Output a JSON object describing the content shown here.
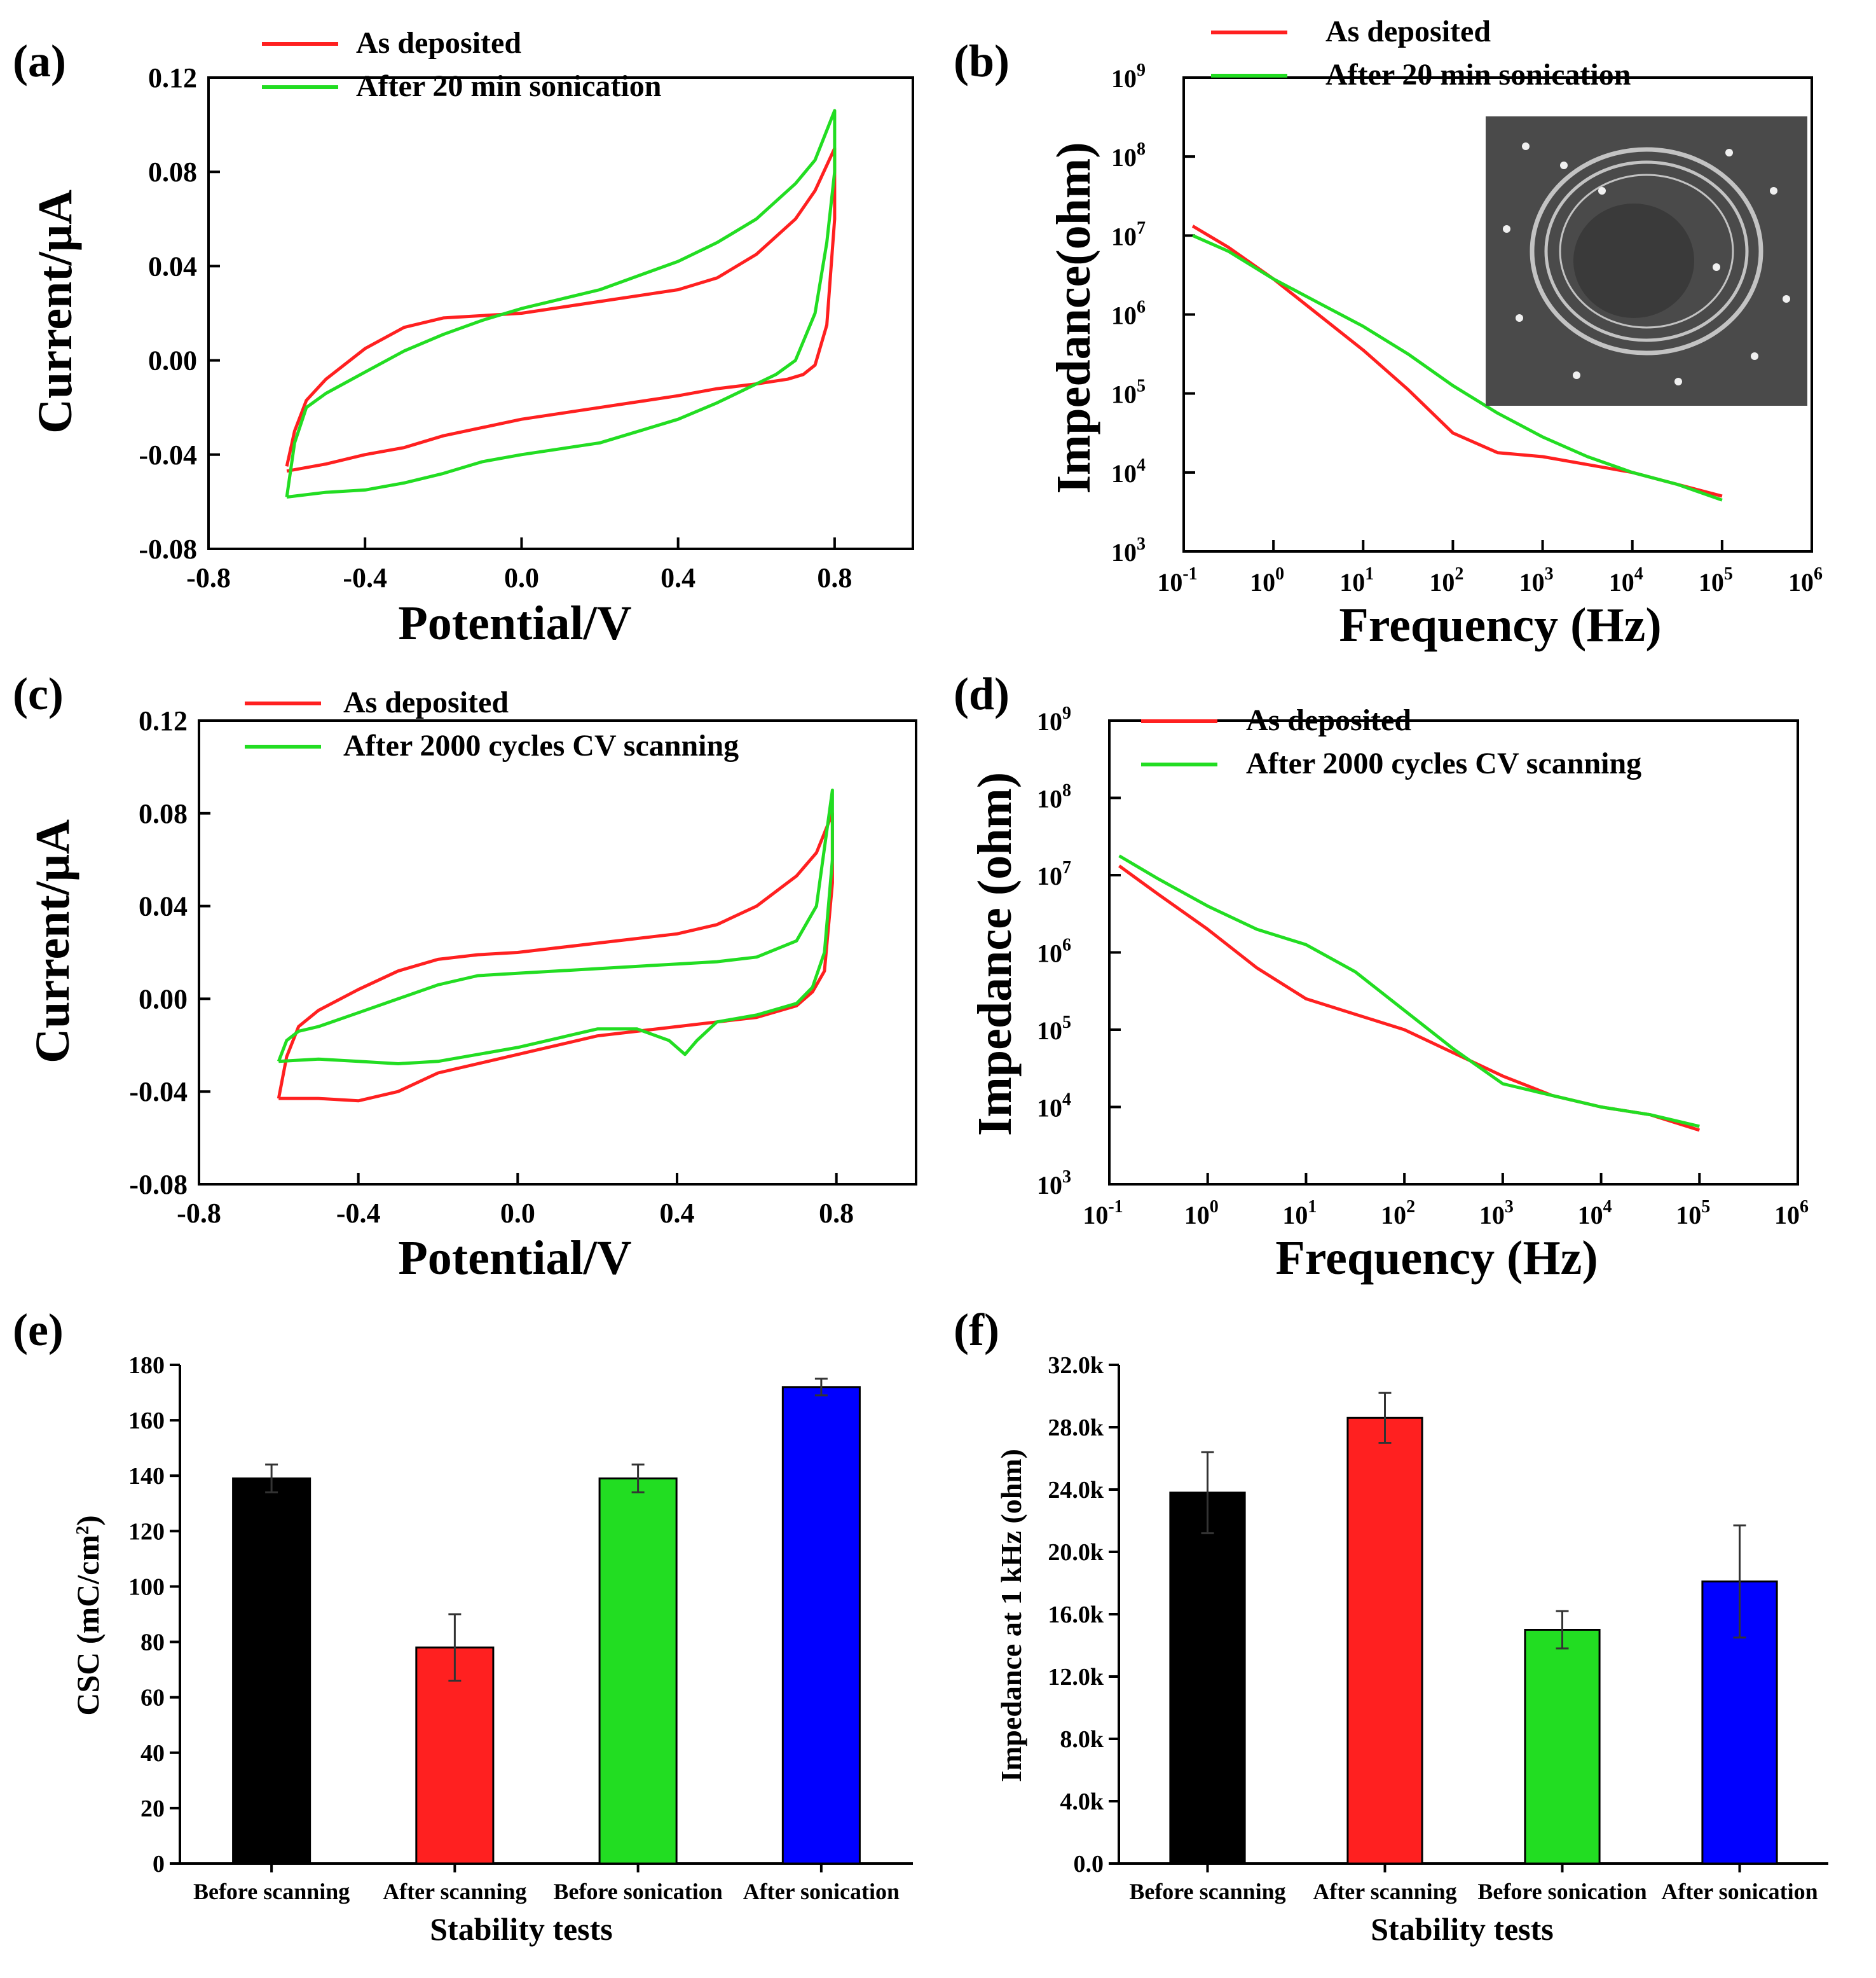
{
  "colors": {
    "red": "#ff2020",
    "green": "#22dd22",
    "black": "#000000",
    "blue": "#0000ff"
  },
  "chart_data": [
    {
      "panel": "(a)",
      "type": "line",
      "xlabel": "Potential/V",
      "ylabel": "Current/μA",
      "xlim": [
        -0.8,
        1.0
      ],
      "ylim": [
        -0.08,
        0.12
      ],
      "xticks": [
        "-0.8",
        "-0.4",
        "0.0",
        "0.4",
        "0.8"
      ],
      "yticks": [
        "-0.08",
        "-0.04",
        "0.00",
        "0.04",
        "0.08",
        "0.12"
      ],
      "legend": [
        "As deposited",
        "After 20 min sonication"
      ],
      "series": [
        {
          "name": "As deposited",
          "color": "red",
          "x": [
            -0.6,
            -0.58,
            -0.55,
            -0.5,
            -0.4,
            -0.3,
            -0.2,
            -0.1,
            0.0,
            0.2,
            0.4,
            0.5,
            0.6,
            0.7,
            0.75,
            0.8,
            0.8,
            0.78,
            0.75,
            0.72,
            0.68,
            0.6,
            0.5,
            0.4,
            0.2,
            0.0,
            -0.2,
            -0.3,
            -0.4,
            -0.5,
            -0.6
          ],
          "y": [
            -0.045,
            -0.03,
            -0.017,
            -0.008,
            0.005,
            0.014,
            0.018,
            0.019,
            0.02,
            0.025,
            0.03,
            0.035,
            0.045,
            0.06,
            0.072,
            0.09,
            0.06,
            0.015,
            -0.002,
            -0.006,
            -0.008,
            -0.01,
            -0.012,
            -0.015,
            -0.02,
            -0.025,
            -0.032,
            -0.037,
            -0.04,
            -0.044,
            -0.047
          ]
        },
        {
          "name": "After 20 min sonication",
          "color": "green",
          "x": [
            -0.6,
            -0.58,
            -0.55,
            -0.5,
            -0.4,
            -0.3,
            -0.2,
            -0.1,
            0.0,
            0.1,
            0.2,
            0.4,
            0.5,
            0.6,
            0.7,
            0.75,
            0.8,
            0.8,
            0.78,
            0.75,
            0.7,
            0.65,
            0.6,
            0.5,
            0.4,
            0.3,
            0.2,
            0.0,
            -0.1,
            -0.2,
            -0.3,
            -0.4,
            -0.5,
            -0.6
          ],
          "y": [
            -0.058,
            -0.035,
            -0.02,
            -0.014,
            -0.005,
            0.004,
            0.011,
            0.017,
            0.022,
            0.026,
            0.03,
            0.042,
            0.05,
            0.06,
            0.075,
            0.085,
            0.106,
            0.08,
            0.05,
            0.02,
            0.0,
            -0.006,
            -0.01,
            -0.018,
            -0.025,
            -0.03,
            -0.035,
            -0.04,
            -0.043,
            -0.048,
            -0.052,
            -0.055,
            -0.056,
            -0.058
          ]
        }
      ]
    },
    {
      "panel": "(b)",
      "type": "line",
      "xscale": "log",
      "yscale": "log",
      "xlabel": "Frequency (Hz)",
      "ylabel": "Impedance(ohm)",
      "xlim_exp": [
        -1,
        6
      ],
      "ylim_exp": [
        3,
        9
      ],
      "xtick_exps": [
        "-1",
        "0",
        "1",
        "2",
        "3",
        "4",
        "5",
        "6"
      ],
      "ytick_exps": [
        "3",
        "4",
        "5",
        "6",
        "7",
        "8",
        "9"
      ],
      "tick_base": "10",
      "legend": [
        "As deposited",
        "After 20 min sonication"
      ],
      "inset": "SEM micrograph",
      "series": [
        {
          "name": "As deposited",
          "color": "red",
          "log10_x": [
            -0.9,
            -0.5,
            0,
            0.5,
            1,
            1.5,
            2,
            2.5,
            3,
            3.5,
            4,
            4.5,
            5
          ],
          "log10_y": [
            7.12,
            6.85,
            6.45,
            6.0,
            5.55,
            5.05,
            4.5,
            4.25,
            4.2,
            4.1,
            4.0,
            3.85,
            3.7
          ]
        },
        {
          "name": "After 20 min sonication",
          "color": "green",
          "log10_x": [
            -0.9,
            -0.5,
            0,
            0.5,
            1,
            1.5,
            2,
            2.5,
            3,
            3.5,
            4,
            4.5,
            5
          ],
          "log10_y": [
            7.0,
            6.8,
            6.45,
            6.15,
            5.85,
            5.5,
            5.1,
            4.75,
            4.45,
            4.2,
            4.0,
            3.85,
            3.65
          ]
        }
      ]
    },
    {
      "panel": "(c)",
      "type": "line",
      "xlabel": "Potential/V",
      "ylabel": "Current/μA",
      "xlim": [
        -0.8,
        1.0
      ],
      "ylim": [
        -0.08,
        0.12
      ],
      "xticks": [
        "-0.8",
        "-0.4",
        "0.0",
        "0.4",
        "0.8"
      ],
      "yticks": [
        "-0.08",
        "-0.04",
        "0.00",
        "0.04",
        "0.08",
        "0.12"
      ],
      "legend": [
        "As deposited",
        "After 2000 cycles CV scanning"
      ],
      "series": [
        {
          "name": "As deposited",
          "color": "red",
          "x": [
            -0.6,
            -0.58,
            -0.55,
            -0.5,
            -0.4,
            -0.3,
            -0.2,
            -0.1,
            0.0,
            0.2,
            0.4,
            0.5,
            0.6,
            0.7,
            0.75,
            0.79,
            0.79,
            0.77,
            0.74,
            0.7,
            0.6,
            0.5,
            0.4,
            0.2,
            0.0,
            -0.2,
            -0.3,
            -0.4,
            -0.5,
            -0.6
          ],
          "y": [
            -0.043,
            -0.025,
            -0.012,
            -0.005,
            0.004,
            0.012,
            0.017,
            0.019,
            0.02,
            0.024,
            0.028,
            0.032,
            0.04,
            0.053,
            0.063,
            0.08,
            0.05,
            0.012,
            0.003,
            -0.003,
            -0.008,
            -0.01,
            -0.012,
            -0.016,
            -0.024,
            -0.032,
            -0.04,
            -0.044,
            -0.043,
            -0.043
          ]
        },
        {
          "name": "After 2000 cycles CV scanning",
          "color": "green",
          "x": [
            -0.6,
            -0.58,
            -0.55,
            -0.5,
            -0.4,
            -0.3,
            -0.2,
            -0.1,
            0.0,
            0.2,
            0.4,
            0.5,
            0.6,
            0.7,
            0.75,
            0.79,
            0.79,
            0.77,
            0.74,
            0.7,
            0.6,
            0.5,
            0.45,
            0.42,
            0.38,
            0.3,
            0.2,
            0.1,
            0.0,
            -0.2,
            -0.3,
            -0.4,
            -0.5,
            -0.6
          ],
          "y": [
            -0.027,
            -0.018,
            -0.014,
            -0.012,
            -0.006,
            0.0,
            0.006,
            0.01,
            0.011,
            0.013,
            0.015,
            0.016,
            0.018,
            0.025,
            0.04,
            0.09,
            0.06,
            0.02,
            0.005,
            -0.002,
            -0.007,
            -0.01,
            -0.018,
            -0.024,
            -0.018,
            -0.013,
            -0.013,
            -0.017,
            -0.021,
            -0.027,
            -0.028,
            -0.027,
            -0.026,
            -0.027
          ]
        }
      ]
    },
    {
      "panel": "(d)",
      "type": "line",
      "xscale": "log",
      "yscale": "log",
      "xlabel": "Frequency (Hz)",
      "ylabel": "Impedance (ohm)",
      "xlim_exp": [
        -1,
        6
      ],
      "ylim_exp": [
        3,
        9
      ],
      "xtick_exps": [
        "-1",
        "0",
        "1",
        "2",
        "3",
        "4",
        "5",
        "6"
      ],
      "ytick_exps": [
        "3",
        "4",
        "5",
        "6",
        "7",
        "8",
        "9"
      ],
      "tick_base": "10",
      "legend": [
        "As deposited",
        "After 2000 cycles CV scanning"
      ],
      "series": [
        {
          "name": "As deposited",
          "color": "red",
          "log10_x": [
            -0.9,
            -0.5,
            0,
            0.5,
            1,
            1.5,
            2,
            2.5,
            3,
            3.5,
            4,
            4.5,
            5
          ],
          "log10_y": [
            7.12,
            6.75,
            6.3,
            5.8,
            5.4,
            5.2,
            5.0,
            4.7,
            4.4,
            4.15,
            4.0,
            3.9,
            3.7
          ]
        },
        {
          "name": "After 2000 cycles CV scanning",
          "color": "green",
          "log10_x": [
            -0.9,
            -0.5,
            0,
            0.5,
            1,
            1.5,
            2,
            2.5,
            3,
            3.5,
            4,
            4.5,
            5
          ],
          "log10_y": [
            7.25,
            6.95,
            6.6,
            6.3,
            6.1,
            5.75,
            5.25,
            4.75,
            4.3,
            4.15,
            4.0,
            3.9,
            3.75
          ]
        }
      ]
    },
    {
      "panel": "(e)",
      "type": "bar",
      "xlabel": "Stability tests",
      "ylabel": "CSC (mC/cm",
      "ylabel_sup": "2",
      "ylabel_end": ")",
      "ylim": [
        0,
        180
      ],
      "yticks": [
        "0",
        "20",
        "40",
        "60",
        "80",
        "100",
        "120",
        "140",
        "160",
        "180"
      ],
      "categories": [
        "Before scanning",
        "After scanning",
        "Before sonication",
        "After sonication"
      ],
      "values": [
        139,
        78,
        139,
        172
      ],
      "errors": [
        5,
        12,
        5,
        3
      ],
      "bar_colors": [
        "black",
        "red",
        "green",
        "blue"
      ]
    },
    {
      "panel": "(f)",
      "type": "bar",
      "xlabel": "Stability tests",
      "ylabel": "Impedance at 1 kHz (ohm)",
      "ylim": [
        0,
        32000
      ],
      "yticks": [
        "0.0",
        "4.0k",
        "8.0k",
        "12.0k",
        "16.0k",
        "20.0k",
        "24.0k",
        "28.0k",
        "32.0k"
      ],
      "categories": [
        "Before scanning",
        "After scanning",
        "Before sonication",
        "After sonication"
      ],
      "values": [
        23800,
        28600,
        15000,
        18100
      ],
      "errors": [
        2600,
        1600,
        1200,
        3600
      ],
      "bar_colors": [
        "black",
        "red",
        "green",
        "blue"
      ]
    }
  ]
}
